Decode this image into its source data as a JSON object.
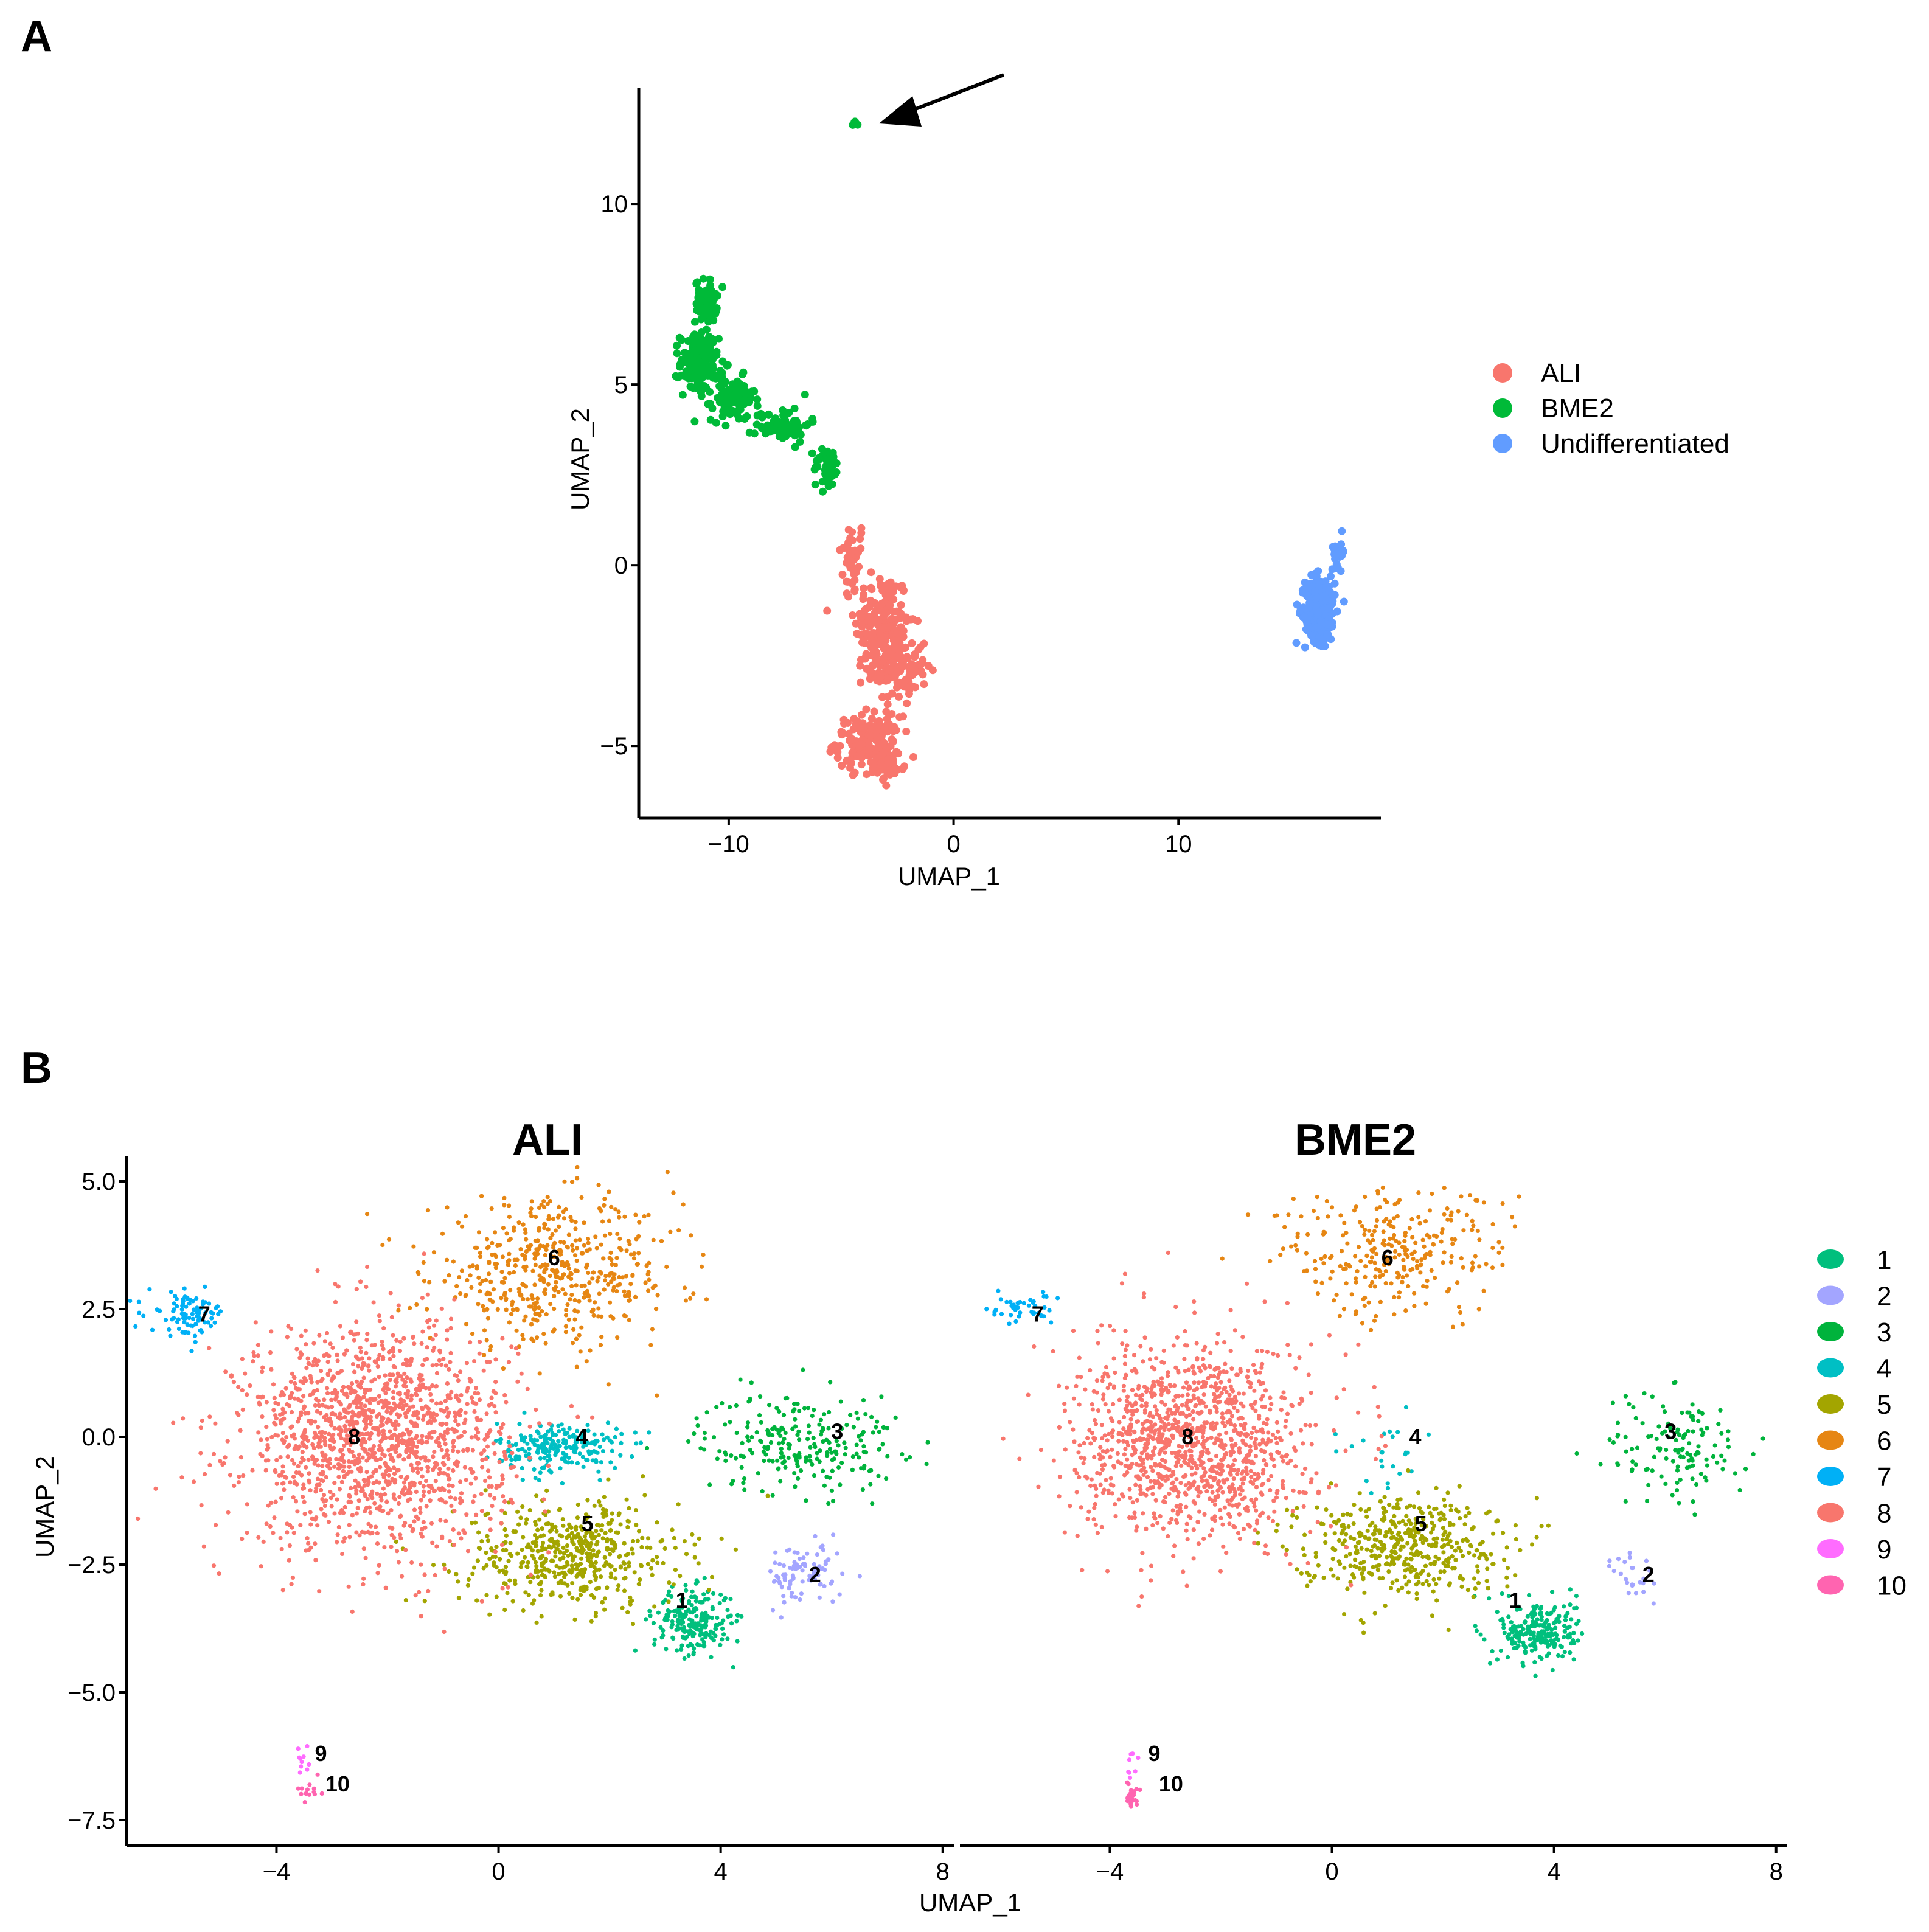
{
  "panel_labels": {
    "a": "A",
    "b": "B"
  },
  "chart_data": [
    {
      "type": "scatter",
      "id": "panelA",
      "title": "",
      "xlabel": "UMAP_1",
      "ylabel": "UMAP_2",
      "xlim": [
        -14,
        19
      ],
      "ylim": [
        -7,
        13.2
      ],
      "xticks": [
        -10,
        0,
        10
      ],
      "yticks": [
        -5,
        0,
        5,
        10
      ],
      "tick_labels_x": [
        "−10",
        "0",
        "10"
      ],
      "tick_labels_y": [
        "−5",
        "0",
        "5",
        "10"
      ],
      "grid": false,
      "legend_position": "right",
      "annotation": "arrow pointing to small BME2 cluster near (-4.4, 12.2)",
      "series": [
        {
          "name": "ALI",
          "color": "#F8766D",
          "clusters": [
            {
              "x": -4.5,
              "y": 0.2,
              "sx": 0.5,
              "sy": 0.9,
              "n": 40
            },
            {
              "x": -3.2,
              "y": -1.6,
              "sx": 1.0,
              "sy": 1.2,
              "n": 160
            },
            {
              "x": -2.5,
              "y": -2.8,
              "sx": 1.1,
              "sy": 0.9,
              "n": 120
            },
            {
              "x": -3.8,
              "y": -4.9,
              "sx": 1.2,
              "sy": 0.6,
              "n": 150
            },
            {
              "x": -3.0,
              "y": -5.6,
              "sx": 0.7,
              "sy": 0.3,
              "n": 50
            }
          ]
        },
        {
          "name": "BME2",
          "color": "#00BA38",
          "clusters": [
            {
              "x": -11.0,
              "y": 7.3,
              "sx": 0.4,
              "sy": 0.5,
              "n": 60
            },
            {
              "x": -11.3,
              "y": 5.6,
              "sx": 0.7,
              "sy": 0.7,
              "n": 170
            },
            {
              "x": -9.8,
              "y": 4.6,
              "sx": 0.8,
              "sy": 0.5,
              "n": 90
            },
            {
              "x": -7.6,
              "y": 3.9,
              "sx": 1.0,
              "sy": 0.4,
              "n": 70
            },
            {
              "x": -5.6,
              "y": 2.7,
              "sx": 0.5,
              "sy": 0.5,
              "n": 45
            },
            {
              "x": -4.4,
              "y": 12.2,
              "sx": 0.1,
              "sy": 0.08,
              "n": 4
            }
          ]
        },
        {
          "name": "Undifferentiated",
          "color": "#619CFF",
          "clusters": [
            {
              "x": 16.3,
              "y": -1.2,
              "sx": 0.55,
              "sy": 0.75,
              "n": 330
            },
            {
              "x": 17.1,
              "y": 0.4,
              "sx": 0.25,
              "sy": 0.35,
              "n": 20
            }
          ]
        }
      ]
    },
    {
      "type": "scatter",
      "id": "panelB",
      "facets": [
        "ALI",
        "BME2"
      ],
      "xlabel": "UMAP_1",
      "ylabel": "UMAP_2",
      "xlim": [
        -6.7,
        8.2
      ],
      "ylim": [
        -8.0,
        5.5
      ],
      "xticks": [
        -4,
        0,
        4,
        8
      ],
      "yticks": [
        -7.5,
        -5.0,
        -2.5,
        0.0,
        2.5,
        5.0
      ],
      "tick_labels_x": [
        "−4",
        "0",
        "4",
        "8"
      ],
      "tick_labels_y": [
        "−7.5",
        "−5.0",
        "−2.5",
        "0.0",
        "2.5",
        "5.0"
      ],
      "grid": false,
      "legend_position": "right",
      "legend": [
        "1",
        "2",
        "3",
        "4",
        "5",
        "6",
        "7",
        "8",
        "9",
        "10"
      ],
      "cluster_colors": [
        "#00BF7D",
        "#A3A5FF",
        "#00B33C",
        "#00BFC4",
        "#A3A500",
        "#E68613",
        "#00B0F6",
        "#F8766D",
        "#FF6CFF",
        "#FF64B0"
      ],
      "cluster_labels": [
        {
          "id": "1",
          "x": 3.3,
          "y": -3.2
        },
        {
          "id": "2",
          "x": 5.7,
          "y": -2.7
        },
        {
          "id": "3",
          "x": 6.1,
          "y": 0.1
        },
        {
          "id": "4",
          "x": 1.5,
          "y": 0.0
        },
        {
          "id": "5",
          "x": 1.6,
          "y": -1.7
        },
        {
          "id": "6",
          "x": 1.0,
          "y": 3.5
        },
        {
          "id": "7",
          "x": -5.3,
          "y": 2.4
        },
        {
          "id": "8",
          "x": -2.6,
          "y": 0.0
        },
        {
          "id": "9",
          "x": -3.2,
          "y": -6.2
        },
        {
          "id": "10",
          "x": -2.9,
          "y": -6.8
        }
      ],
      "facet_data": {
        "ALI": {
          "clusters": [
            {
              "c": 1,
              "x": 3.5,
              "y": -3.6,
              "sx": 0.5,
              "sy": 0.45,
              "n": 220
            },
            {
              "c": 2,
              "x": 5.5,
              "y": -2.7,
              "sx": 0.5,
              "sy": 0.45,
              "n": 90
            },
            {
              "c": 3,
              "x": 5.4,
              "y": -0.1,
              "sx": 1.3,
              "sy": 0.7,
              "n": 240
            },
            {
              "c": 4,
              "x": 1.1,
              "y": -0.2,
              "sx": 0.8,
              "sy": 0.35,
              "n": 220
            },
            {
              "c": 5,
              "x": 1.3,
              "y": -2.3,
              "sx": 1.4,
              "sy": 0.75,
              "n": 500
            },
            {
              "c": 6,
              "x": 1.0,
              "y": 3.2,
              "sx": 1.6,
              "sy": 1.0,
              "n": 500
            },
            {
              "c": 7,
              "x": -5.6,
              "y": 2.4,
              "sx": 0.5,
              "sy": 0.3,
              "n": 90
            },
            {
              "c": 8,
              "x": -2.2,
              "y": 0.0,
              "sx": 1.7,
              "sy": 1.55,
              "n": 1500
            },
            {
              "c": 9,
              "x": -3.5,
              "y": -6.4,
              "sx": 0.1,
              "sy": 0.3,
              "n": 10
            },
            {
              "c": 10,
              "x": -3.4,
              "y": -6.9,
              "sx": 0.15,
              "sy": 0.15,
              "n": 14
            }
          ]
        },
        "BME2": {
          "clusters": [
            {
              "c": 1,
              "x": 3.7,
              "y": -3.8,
              "sx": 0.5,
              "sy": 0.45,
              "n": 230
            },
            {
              "c": 2,
              "x": 5.5,
              "y": -2.8,
              "sx": 0.3,
              "sy": 0.5,
              "n": 25
            },
            {
              "c": 3,
              "x": 6.2,
              "y": -0.2,
              "sx": 0.9,
              "sy": 0.8,
              "n": 130
            },
            {
              "c": 4,
              "x": 1.1,
              "y": -0.3,
              "sx": 0.6,
              "sy": 0.6,
              "n": 25
            },
            {
              "c": 5,
              "x": 1.2,
              "y": -2.1,
              "sx": 1.3,
              "sy": 0.7,
              "n": 450
            },
            {
              "c": 6,
              "x": 1.1,
              "y": 3.6,
              "sx": 1.5,
              "sy": 0.9,
              "n": 280
            },
            {
              "c": 7,
              "x": -5.6,
              "y": 2.5,
              "sx": 0.4,
              "sy": 0.2,
              "n": 45
            },
            {
              "c": 8,
              "x": -2.5,
              "y": -0.1,
              "sx": 1.5,
              "sy": 1.4,
              "n": 1200
            },
            {
              "c": 9,
              "x": -3.6,
              "y": -6.4,
              "sx": 0.08,
              "sy": 0.3,
              "n": 8
            },
            {
              "c": 10,
              "x": -3.6,
              "y": -7.0,
              "sx": 0.08,
              "sy": 0.15,
              "n": 30
            }
          ]
        }
      }
    }
  ]
}
